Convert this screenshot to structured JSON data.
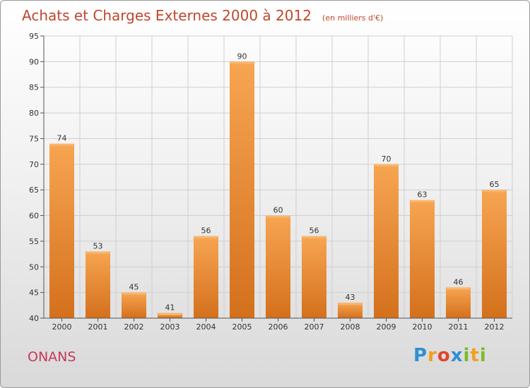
{
  "chart_data": {
    "type": "bar",
    "title": "Achats et Charges Externes 2000 à 2012",
    "subtitle": "(en milliers d'€)",
    "categories": [
      "2000",
      "2001",
      "2002",
      "2003",
      "2004",
      "2005",
      "2006",
      "2007",
      "2008",
      "2009",
      "2010",
      "2011",
      "2012"
    ],
    "values": [
      74,
      53,
      45,
      41,
      56,
      90,
      60,
      56,
      43,
      70,
      63,
      46,
      65
    ],
    "ylim": [
      40,
      95
    ],
    "yticks": [
      40,
      45,
      50,
      55,
      60,
      65,
      70,
      75,
      80,
      85,
      90,
      95
    ],
    "grid": true,
    "bar_color": "#f08a2c",
    "xlabel": "",
    "ylabel": ""
  },
  "commune": "ONANS",
  "logo": {
    "letters": [
      "P",
      "r",
      "o",
      "x",
      "i",
      "t",
      "i"
    ],
    "colors": [
      "#2e8fd3",
      "#f0a020",
      "#e0452a",
      "#2e8fd3",
      "#7cbb2a",
      "#f0a020",
      "#7cbb2a"
    ]
  }
}
